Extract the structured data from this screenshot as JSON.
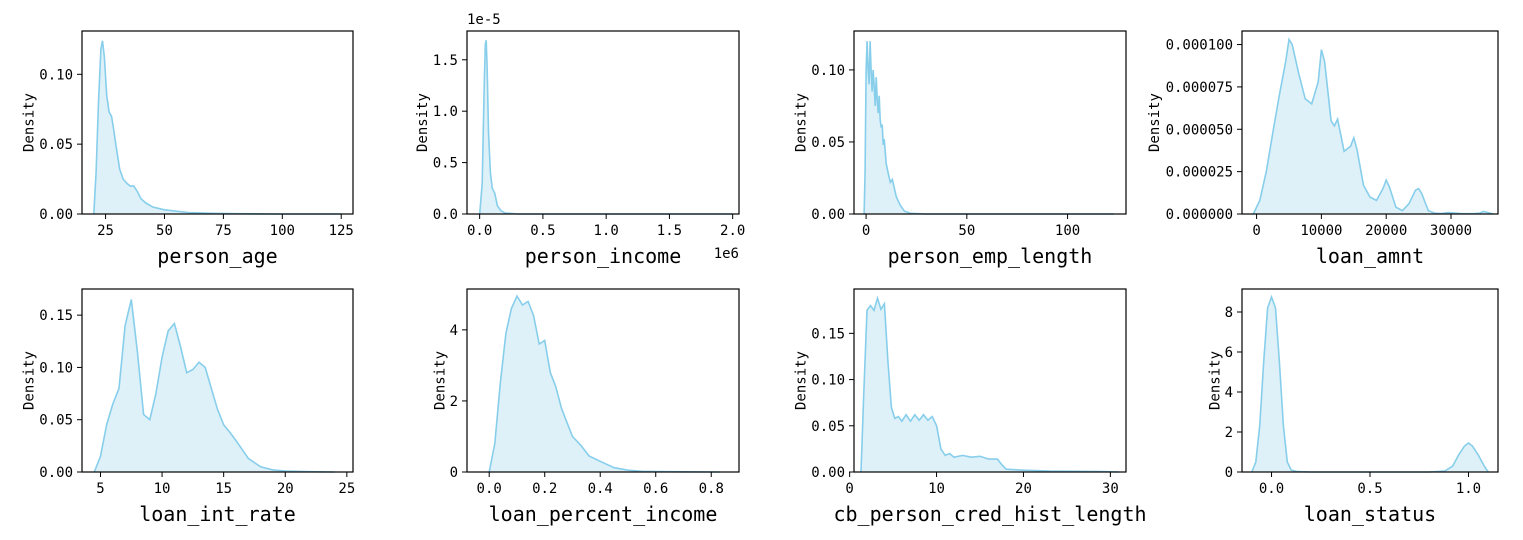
{
  "colors": {
    "line": "#87CEEB",
    "fill": "#87CEEB",
    "fill_opacity": 0.28
  },
  "chart_data": [
    {
      "type": "area",
      "xlabel": "person_age",
      "ylabel": "Density",
      "xlim": [
        15,
        130
      ],
      "ylim": [
        0,
        0.131
      ],
      "xticks": [
        25,
        50,
        75,
        100,
        125
      ],
      "xtick_labels": [
        "25",
        "50",
        "75",
        "100",
        "125"
      ],
      "yticks": [
        0,
        0.05,
        0.1
      ],
      "ytick_labels": [
        "0.00",
        "0.05",
        "0.10"
      ],
      "x": [
        20,
        21,
        22,
        23,
        23.7,
        24.5,
        25.5,
        26.5,
        27.5,
        28.5,
        29.5,
        31,
        32.5,
        34,
        35.5,
        37,
        38.5,
        40,
        42,
        45,
        50,
        55,
        60,
        70,
        80,
        100,
        125
      ],
      "y": [
        0.0,
        0.03,
        0.08,
        0.118,
        0.124,
        0.112,
        0.085,
        0.073,
        0.07,
        0.06,
        0.048,
        0.032,
        0.025,
        0.022,
        0.02,
        0.02,
        0.016,
        0.011,
        0.008,
        0.005,
        0.003,
        0.002,
        0.001,
        0.0005,
        0.0002,
        0.0,
        0.0
      ]
    },
    {
      "type": "area",
      "xlabel": "person_income",
      "ylabel": "Density",
      "xlim": [
        -100000,
        2050000
      ],
      "ylim": [
        0,
        1.78e-05
      ],
      "xticks": [
        0,
        500000,
        1000000,
        1500000,
        2000000
      ],
      "xtick_labels": [
        "0.0",
        "0.5",
        "1.0",
        "1.5",
        "2.0"
      ],
      "x_offset_text": "1e6",
      "yticks": [
        0,
        5e-06,
        1e-05,
        1.5e-05
      ],
      "ytick_labels": [
        "0.0",
        "0.5",
        "1.0",
        "1.5"
      ],
      "y_offset_text": "1e-5",
      "x": [
        0,
        20000,
        35000,
        45000,
        52000,
        60000,
        70000,
        85000,
        100000,
        120000,
        140000,
        170000,
        200000,
        300000,
        500000,
        2000000
      ],
      "y": [
        0.0,
        3e-06,
        1.2e-05,
        1.65e-05,
        1.69e-05,
        1.4e-05,
        8e-06,
        4e-06,
        2.5e-06,
        2e-06,
        8e-07,
        3e-07,
        1e-07,
        0.0,
        0.0,
        0.0
      ]
    },
    {
      "type": "area",
      "xlabel": "person_emp_length",
      "ylabel": "Density",
      "xlim": [
        -6,
        129
      ],
      "ylim": [
        0,
        0.127
      ],
      "xticks": [
        0,
        50,
        100
      ],
      "xtick_labels": [
        "0",
        "50",
        "100"
      ],
      "yticks": [
        0,
        0.05,
        0.1
      ],
      "ytick_labels": [
        "0.00",
        "0.05",
        "0.10"
      ],
      "x": [
        -1,
        -0.5,
        0,
        0.5,
        1,
        1.5,
        2,
        2.5,
        3,
        3.5,
        4,
        4.5,
        5,
        5.5,
        6,
        6.5,
        7,
        7.5,
        8,
        8.5,
        9,
        10,
        11,
        12,
        13,
        14,
        15,
        17,
        19,
        22,
        30,
        45,
        60,
        123
      ],
      "y": [
        0.0,
        0.03,
        0.1,
        0.12,
        0.1,
        0.09,
        0.12,
        0.1,
        0.085,
        0.1,
        0.09,
        0.075,
        0.095,
        0.08,
        0.07,
        0.082,
        0.065,
        0.06,
        0.062,
        0.048,
        0.052,
        0.035,
        0.028,
        0.022,
        0.024,
        0.018,
        0.012,
        0.006,
        0.002,
        0.0005,
        0.0,
        0.0,
        0.0,
        0.0
      ]
    },
    {
      "type": "area",
      "xlabel": "loan_amnt",
      "ylabel": "Density",
      "xlim": [
        -2250,
        37250
      ],
      "ylim": [
        0,
        0.000108
      ],
      "xticks": [
        0,
        10000,
        20000,
        30000
      ],
      "xtick_labels": [
        "0",
        "10000",
        "20000",
        "30000"
      ],
      "yticks": [
        0,
        2.5e-05,
        5e-05,
        7.5e-05,
        0.0001
      ],
      "ytick_labels": [
        "0.000000",
        "0.000025",
        "0.000050",
        "0.000075",
        "0.000100"
      ],
      "x": [
        -500,
        500,
        1500,
        2500,
        3500,
        4500,
        5000,
        5500,
        6500,
        7500,
        8500,
        9500,
        10000,
        10500,
        11500,
        12000,
        12500,
        13500,
        14500,
        15000,
        15500,
        16500,
        17500,
        18500,
        19500,
        20000,
        20500,
        21500,
        22500,
        23500,
        24500,
        25000,
        25500,
        26500,
        27500,
        28500,
        29500,
        30500,
        31500,
        32500,
        33500,
        34500,
        35000,
        35500,
        36500
      ],
      "y": [
        0.0,
        8e-06,
        2.5e-05,
        4.8e-05,
        7e-05,
        9e-05,
        0.000103,
        0.0001,
        8.3e-05,
        6.8e-05,
        6.5e-05,
        7.8e-05,
        9.7e-05,
        9e-05,
        5.5e-05,
        5.2e-05,
        5.6e-05,
        3.7e-05,
        4e-05,
        4.5e-05,
        3.8e-05,
        1.7e-05,
        1e-05,
        8e-06,
        1.5e-05,
        2e-05,
        1.6e-05,
        4e-06,
        2e-06,
        6e-06,
        1.4e-05,
        1.5e-05,
        1.2e-05,
        2e-06,
        5e-07,
        3e-07,
        8e-07,
        6e-07,
        3e-07,
        2e-07,
        2e-07,
        6e-07,
        1.5e-06,
        1e-06,
        0.0
      ]
    },
    {
      "type": "area",
      "xlabel": "loan_int_rate",
      "ylabel": "Density",
      "xlim": [
        3.5,
        25.5
      ],
      "ylim": [
        0,
        0.175
      ],
      "xticks": [
        5,
        10,
        15,
        20,
        25
      ],
      "xtick_labels": [
        "5",
        "10",
        "15",
        "20",
        "25"
      ],
      "yticks": [
        0,
        0.05,
        0.1,
        0.15
      ],
      "ytick_labels": [
        "0.00",
        "0.05",
        "0.10",
        "0.15"
      ],
      "x": [
        4.5,
        5,
        5.5,
        6,
        6.5,
        7,
        7.5,
        8,
        8.5,
        9,
        9.5,
        10,
        10.5,
        11,
        11.5,
        12,
        12.5,
        13,
        13.5,
        14,
        14.5,
        15,
        15.5,
        16,
        17,
        18,
        19,
        20,
        22,
        24
      ],
      "y": [
        0.0,
        0.015,
        0.045,
        0.065,
        0.08,
        0.14,
        0.165,
        0.115,
        0.055,
        0.05,
        0.075,
        0.11,
        0.135,
        0.142,
        0.12,
        0.095,
        0.098,
        0.105,
        0.1,
        0.08,
        0.06,
        0.045,
        0.038,
        0.03,
        0.013,
        0.005,
        0.002,
        0.001,
        0.0003,
        0.0
      ]
    },
    {
      "type": "area",
      "xlabel": "loan_percent_income",
      "ylabel": "Density",
      "xlim": [
        -0.08,
        0.9
      ],
      "ylim": [
        0,
        5.15
      ],
      "xticks": [
        0,
        0.2,
        0.4,
        0.6,
        0.8
      ],
      "xtick_labels": [
        "0.0",
        "0.2",
        "0.4",
        "0.6",
        "0.8"
      ],
      "yticks": [
        0,
        2,
        4
      ],
      "ytick_labels": [
        "0",
        "2",
        "4"
      ],
      "x": [
        0.0,
        0.02,
        0.04,
        0.06,
        0.08,
        0.1,
        0.12,
        0.14,
        0.16,
        0.18,
        0.2,
        0.22,
        0.24,
        0.26,
        0.28,
        0.3,
        0.33,
        0.36,
        0.4,
        0.45,
        0.5,
        0.55,
        0.6,
        0.7,
        0.83
      ],
      "y": [
        0.0,
        0.8,
        2.5,
        3.9,
        4.6,
        4.95,
        4.7,
        4.8,
        4.4,
        3.6,
        3.7,
        2.8,
        2.4,
        1.8,
        1.4,
        1.0,
        0.75,
        0.45,
        0.3,
        0.12,
        0.05,
        0.02,
        0.01,
        0.005,
        0.0
      ]
    },
    {
      "type": "area",
      "xlabel": "cb_person_cred_hist_length",
      "ylabel": "Density",
      "xlim": [
        0.5,
        31.8
      ],
      "ylim": [
        0,
        0.198
      ],
      "xticks": [
        0,
        10,
        20,
        30
      ],
      "xtick_labels": [
        "0",
        "10",
        "20",
        "30"
      ],
      "yticks": [
        0,
        0.05,
        0.1,
        0.15
      ],
      "ytick_labels": [
        "0.00",
        "0.05",
        "0.10",
        "0.15"
      ],
      "x": [
        1.3,
        1.6,
        2,
        2.4,
        2.8,
        3.2,
        3.6,
        4,
        4.4,
        4.8,
        5.2,
        5.6,
        6,
        6.5,
        7,
        7.5,
        8,
        8.5,
        9,
        9.5,
        10,
        10.5,
        11,
        11.5,
        12,
        13,
        14,
        15,
        16,
        17,
        17.5,
        18,
        20,
        23,
        26,
        29,
        31
      ],
      "y": [
        0.0,
        0.08,
        0.175,
        0.18,
        0.175,
        0.188,
        0.176,
        0.182,
        0.12,
        0.07,
        0.058,
        0.06,
        0.055,
        0.062,
        0.055,
        0.062,
        0.056,
        0.062,
        0.056,
        0.06,
        0.05,
        0.025,
        0.018,
        0.02,
        0.016,
        0.018,
        0.016,
        0.017,
        0.014,
        0.014,
        0.008,
        0.003,
        0.002,
        0.001,
        0.0008,
        0.0005,
        0.0
      ]
    },
    {
      "type": "area",
      "xlabel": "loan_status",
      "ylabel": "Density",
      "xlim": [
        -0.15,
        1.15
      ],
      "ylim": [
        0,
        9.15
      ],
      "xticks": [
        0,
        0.5,
        1.0
      ],
      "xtick_labels": [
        "0.0",
        "0.5",
        "1.0"
      ],
      "yticks": [
        0,
        2,
        4,
        6,
        8
      ],
      "ytick_labels": [
        "0",
        "2",
        "4",
        "6",
        "8"
      ],
      "x": [
        -0.1,
        -0.08,
        -0.06,
        -0.04,
        -0.02,
        0.0,
        0.02,
        0.04,
        0.06,
        0.08,
        0.1,
        0.13,
        0.2,
        0.5,
        0.8,
        0.88,
        0.92,
        0.95,
        0.98,
        1.0,
        1.02,
        1.05,
        1.08,
        1.1
      ],
      "y": [
        0.0,
        0.5,
        2.3,
        5.5,
        8.2,
        8.75,
        8.2,
        5.5,
        2.3,
        0.5,
        0.1,
        0.02,
        0.0,
        0.0,
        0.0,
        0.05,
        0.3,
        0.85,
        1.3,
        1.45,
        1.3,
        0.85,
        0.3,
        0.0
      ]
    }
  ]
}
